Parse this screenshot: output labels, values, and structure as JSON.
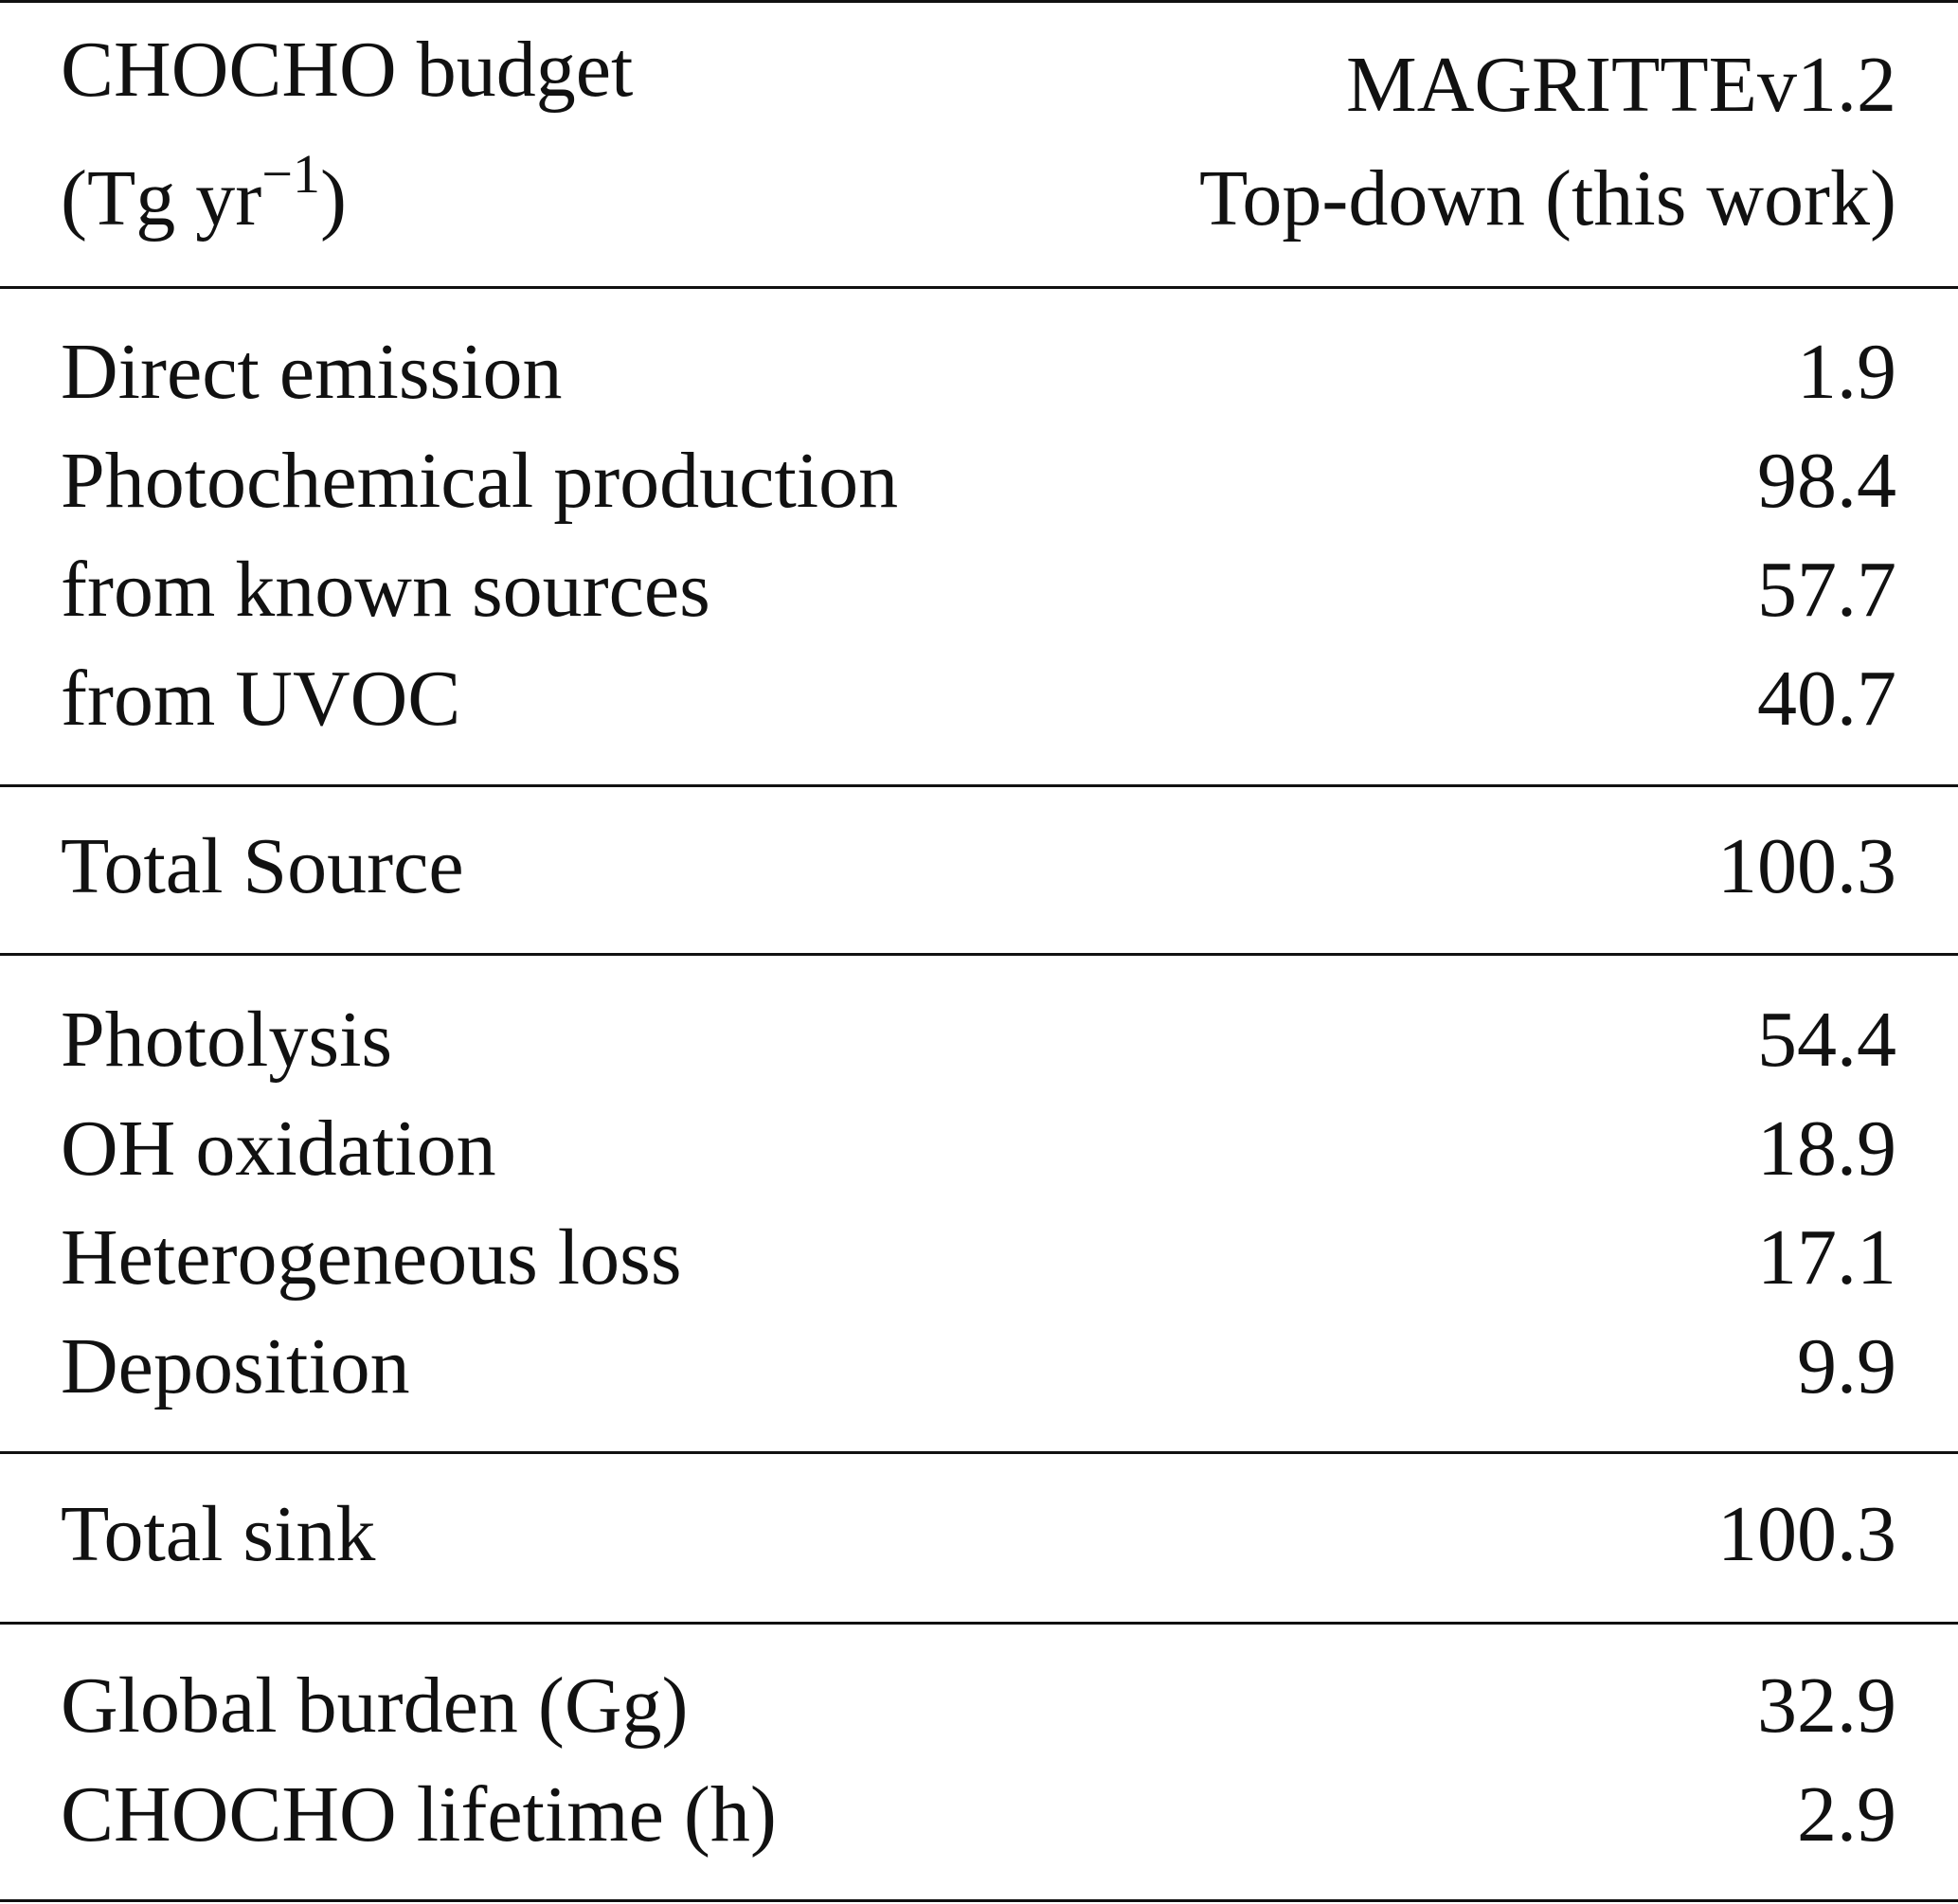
{
  "table": {
    "header": {
      "col1_line1": "CHOCHO budget",
      "col1_line2_base": "(Tg yr",
      "col1_line2_exp": "−1",
      "col1_line2_close": ")",
      "col2_line1": "MAGRITTEv1.2",
      "col2_line2": "Top-down (this work)"
    },
    "rows": [
      {
        "label": "Direct emission",
        "value": "1.9"
      },
      {
        "label": "Photochemical production",
        "value": "98.4"
      },
      {
        "label": "from known sources",
        "value": "57.7"
      },
      {
        "label": "from UVOC",
        "value": "40.7"
      },
      {
        "label": "Total Source",
        "value": "100.3"
      },
      {
        "label": "Photolysis",
        "value": "54.4"
      },
      {
        "label": "OH oxidation",
        "value": "18.9"
      },
      {
        "label": "Heterogeneous loss",
        "value": "17.1"
      },
      {
        "label": "Deposition",
        "value": "9.9"
      },
      {
        "label": "Total sink",
        "value": "100.3"
      },
      {
        "label": "Global burden (Gg)",
        "value": "32.9"
      },
      {
        "label": "CHOCHO lifetime (h)",
        "value": "2.9"
      }
    ]
  }
}
